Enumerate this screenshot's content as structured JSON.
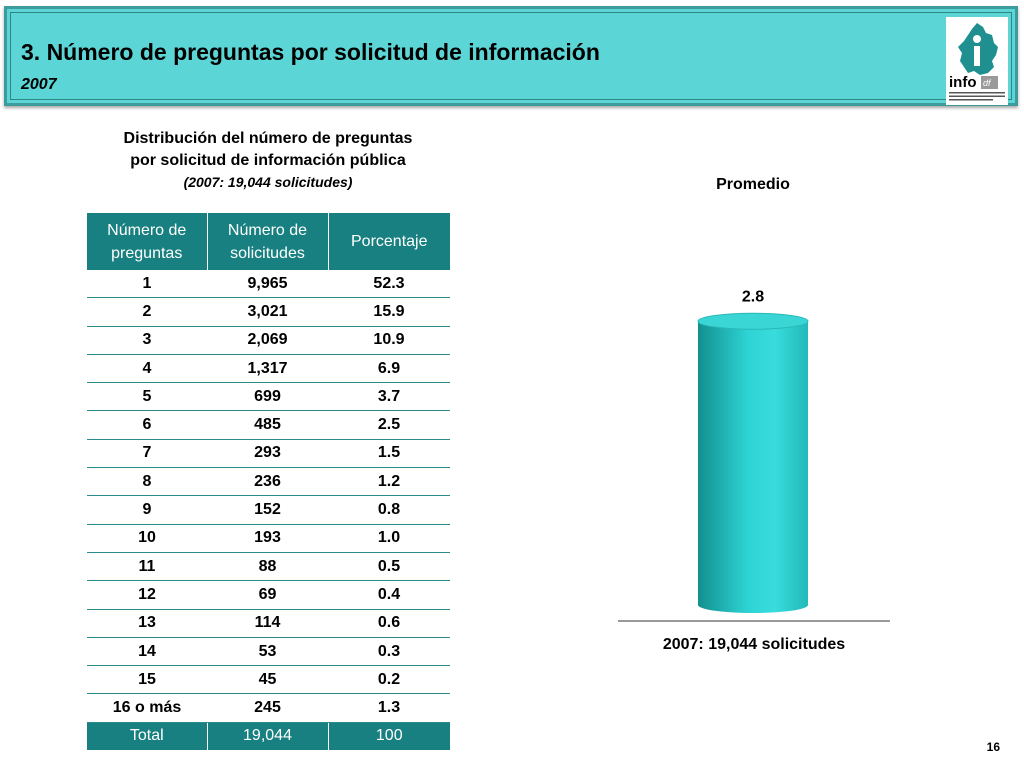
{
  "header": {
    "title": "3. Número de preguntas por solicitud de información",
    "subtitle": "2007",
    "logo": {
      "icon": "infodf-logo-icon",
      "wordmark": "info",
      "wordmark_suffix": "df",
      "tagline": "Instituto de Acceso a la Información Pública del Distrito Federal"
    }
  },
  "table_caption": {
    "line1": "Distribución del número de preguntas",
    "line2": "por solicitud de información pública",
    "line3": "(2007: 19,044 solicitudes)"
  },
  "table": {
    "headers": [
      "Número de preguntas",
      "Número de solicitudes",
      "Porcentaje"
    ],
    "rows": [
      [
        "1",
        "9,965",
        "52.3"
      ],
      [
        "2",
        "3,021",
        "15.9"
      ],
      [
        "3",
        "2,069",
        "10.9"
      ],
      [
        "4",
        "1,317",
        "6.9"
      ],
      [
        "5",
        "699",
        "3.7"
      ],
      [
        "6",
        "485",
        "2.5"
      ],
      [
        "7",
        "293",
        "1.5"
      ],
      [
        "8",
        "236",
        "1.2"
      ],
      [
        "9",
        "152",
        "0.8"
      ],
      [
        "10",
        "193",
        "1.0"
      ],
      [
        "11",
        "88",
        "0.5"
      ],
      [
        "12",
        "69",
        "0.4"
      ],
      [
        "13",
        "114",
        "0.6"
      ],
      [
        "14",
        "53",
        "0.3"
      ],
      [
        "15",
        "45",
        "0.2"
      ],
      [
        "16 o más",
        "245",
        "1.3"
      ]
    ],
    "total": [
      "Total",
      "19,044",
      "100"
    ]
  },
  "chart_data": {
    "type": "bar",
    "title": "Promedio",
    "categories": [
      "2007: 19,044 solicitudes"
    ],
    "values": [
      2.8
    ],
    "data_labels": [
      "2.8"
    ],
    "color": "#2ed3d3",
    "style": "3d-cylinder"
  },
  "page_number": "16"
}
